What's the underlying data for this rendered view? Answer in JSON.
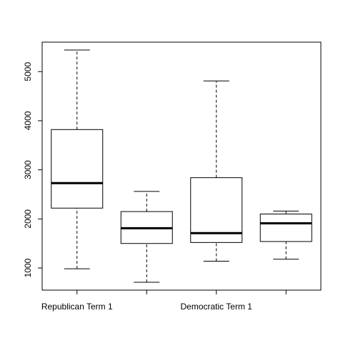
{
  "chart_data": {
    "type": "boxplot",
    "title": "",
    "xlabel": "",
    "ylabel": "",
    "ylim": [
      550,
      5600
    ],
    "yticks": [
      1000,
      2000,
      3000,
      4000,
      5000
    ],
    "ytick_labels": [
      "1000",
      "2000",
      "3000",
      "4000",
      "5000"
    ],
    "categories": [
      "Republican Term 1",
      "",
      "Democratic Term 1",
      ""
    ],
    "boxes": [
      {
        "min": 985,
        "q1": 2220,
        "median": 2730,
        "q3": 3820,
        "max": 5440
      },
      {
        "min": 710,
        "q1": 1500,
        "median": 1810,
        "q3": 2150,
        "max": 2560
      },
      {
        "min": 1140,
        "q1": 1520,
        "median": 1710,
        "q3": 2840,
        "max": 4810
      },
      {
        "min": 1180,
        "q1": 1540,
        "median": 1910,
        "q3": 2100,
        "max": 2160
      }
    ],
    "grid": false,
    "legend": "none"
  }
}
